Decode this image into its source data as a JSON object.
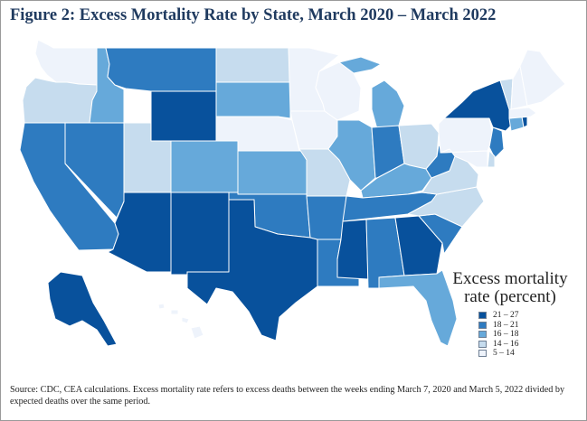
{
  "figure": {
    "title": "Figure 2:  Excess Mortality Rate by State, March 2020 – March 2022",
    "source": "Source:  CDC, CEA calculations.  Excess mortality rate refers to excess deaths between the weeks ending March 7, 2020 and March 5, 2022 divided by expected deaths over the same period."
  },
  "legend": {
    "title": "Excess mortality rate (percent)",
    "items": [
      {
        "label": "21 – 27",
        "color": "#08519c",
        "class": 5
      },
      {
        "label": "18 – 21",
        "color": "#2e7bc0",
        "class": 4
      },
      {
        "label": "16 – 18",
        "color": "#66a9da",
        "class": 3
      },
      {
        "label": "14 – 16",
        "color": "#c6dcee",
        "class": 2
      },
      {
        "label": "5 – 14",
        "color": "#eef3fb",
        "class": 1
      }
    ]
  },
  "states": [
    {
      "abbr": "WA",
      "class": 1
    },
    {
      "abbr": "OR",
      "class": 2
    },
    {
      "abbr": "CA",
      "class": 4
    },
    {
      "abbr": "NV",
      "class": 4
    },
    {
      "abbr": "ID",
      "class": 3
    },
    {
      "abbr": "MT",
      "class": 4
    },
    {
      "abbr": "WY",
      "class": 5
    },
    {
      "abbr": "UT",
      "class": 2
    },
    {
      "abbr": "AZ",
      "class": 5
    },
    {
      "abbr": "CO",
      "class": 3
    },
    {
      "abbr": "NM",
      "class": 5
    },
    {
      "abbr": "ND",
      "class": 2
    },
    {
      "abbr": "SD",
      "class": 3
    },
    {
      "abbr": "NE",
      "class": 1
    },
    {
      "abbr": "KS",
      "class": 3
    },
    {
      "abbr": "OK",
      "class": 4
    },
    {
      "abbr": "TX",
      "class": 5
    },
    {
      "abbr": "MN",
      "class": 1
    },
    {
      "abbr": "IA",
      "class": 1
    },
    {
      "abbr": "MO",
      "class": 2
    },
    {
      "abbr": "AR",
      "class": 4
    },
    {
      "abbr": "LA",
      "class": 4
    },
    {
      "abbr": "WI",
      "class": 1
    },
    {
      "abbr": "IL",
      "class": 3
    },
    {
      "abbr": "MI",
      "class": 3
    },
    {
      "abbr": "IN",
      "class": 4
    },
    {
      "abbr": "OH",
      "class": 2
    },
    {
      "abbr": "KY",
      "class": 3
    },
    {
      "abbr": "TN",
      "class": 4
    },
    {
      "abbr": "MS",
      "class": 5
    },
    {
      "abbr": "AL",
      "class": 4
    },
    {
      "abbr": "GA",
      "class": 5
    },
    {
      "abbr": "FL",
      "class": 3
    },
    {
      "abbr": "SC",
      "class": 4
    },
    {
      "abbr": "NC",
      "class": 2
    },
    {
      "abbr": "VA",
      "class": 2
    },
    {
      "abbr": "WV",
      "class": 4
    },
    {
      "abbr": "PA",
      "class": 1
    },
    {
      "abbr": "NY",
      "class": 5
    },
    {
      "abbr": "NJ",
      "class": 4
    },
    {
      "abbr": "DE",
      "class": 2
    },
    {
      "abbr": "MD",
      "class": 1
    },
    {
      "abbr": "CT",
      "class": 3
    },
    {
      "abbr": "RI",
      "class": 5
    },
    {
      "abbr": "MA",
      "class": 1
    },
    {
      "abbr": "VT",
      "class": 2
    },
    {
      "abbr": "NH",
      "class": 1
    },
    {
      "abbr": "ME",
      "class": 1
    },
    {
      "abbr": "AK",
      "class": 5
    },
    {
      "abbr": "HI",
      "class": 1
    }
  ]
}
